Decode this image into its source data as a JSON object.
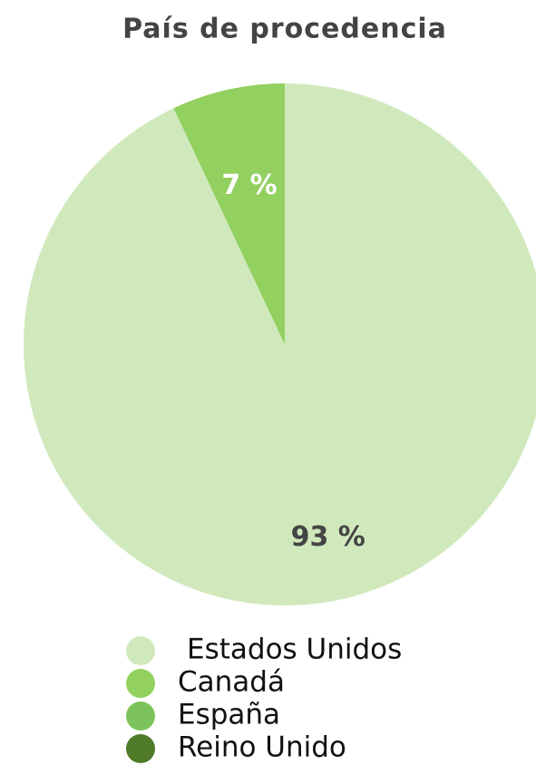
{
  "chart_data": {
    "type": "pie",
    "title": "País de procedencia",
    "categories": [
      "Estados Unidos",
      "Canadá",
      "España",
      "Reino Unido"
    ],
    "values": [
      93,
      7,
      0,
      0
    ],
    "value_labels": [
      "93 %",
      "7 %",
      null,
      null
    ],
    "colors": [
      "#d0e9bc",
      "#92d060",
      "#7bc35a",
      "#4f7a28"
    ]
  }
}
